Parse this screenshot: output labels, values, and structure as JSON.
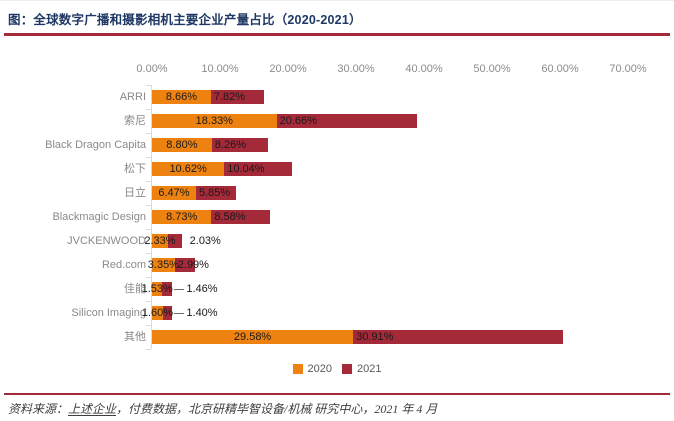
{
  "header": {
    "title": "图：全球数字广播和摄影相机主要企业产量占比（2020-2021）",
    "title_color": "#1F3864",
    "rule_color": "#A32A3B"
  },
  "chart_data": {
    "type": "bar",
    "orientation": "horizontal-stacked",
    "title": "全球数字广播和摄影相机主要企业产量占比（2020-2021）",
    "categories": [
      "ARRI",
      "索尼",
      "Black Dragon Capita",
      "松下",
      "日立",
      "Blackmagic Design",
      "JVCKENWOOD",
      "Red.com",
      "佳能",
      "Silicon Imaging",
      "其他"
    ],
    "series": [
      {
        "name": "2020",
        "color": "#EE8210",
        "values": [
          8.66,
          18.33,
          8.8,
          10.62,
          6.47,
          8.73,
          2.33,
          3.35,
          1.53,
          1.6,
          29.58
        ]
      },
      {
        "name": "2021",
        "color": "#A42939",
        "values": [
          7.82,
          20.66,
          8.26,
          10.04,
          5.85,
          8.58,
          2.03,
          2.99,
          1.46,
          1.4,
          30.91
        ]
      }
    ],
    "x_axis": {
      "position": "top",
      "min": 0,
      "max": 70,
      "tick_labels": [
        "0.00%",
        "10.00%",
        "20.00%",
        "30.00%",
        "40.00%",
        "50.00%",
        "60.00%",
        "70.00%"
      ],
      "tick_values": [
        0,
        10,
        20,
        30,
        40,
        50,
        60,
        70
      ],
      "label_color": "#8C8C8C",
      "axis_line_color": "#D9D9D9"
    },
    "value_label_format": "0.00%",
    "value_label_color": "#1A1A1A",
    "category_label_color": "#8A8A8A",
    "grid": false,
    "legend": {
      "position": "bottom-center",
      "items": [
        {
          "label": "2020",
          "color": "#EE8210"
        },
        {
          "label": "2021",
          "color": "#A42939"
        }
      ]
    }
  },
  "footer": {
    "rule_color": "#A32A3B",
    "source_prefix": "资料来源：",
    "source_link": "上述企业",
    "source_rest": "，付费数据，北京研精毕智设备/机械 研究中心，2021 年 4 月"
  }
}
